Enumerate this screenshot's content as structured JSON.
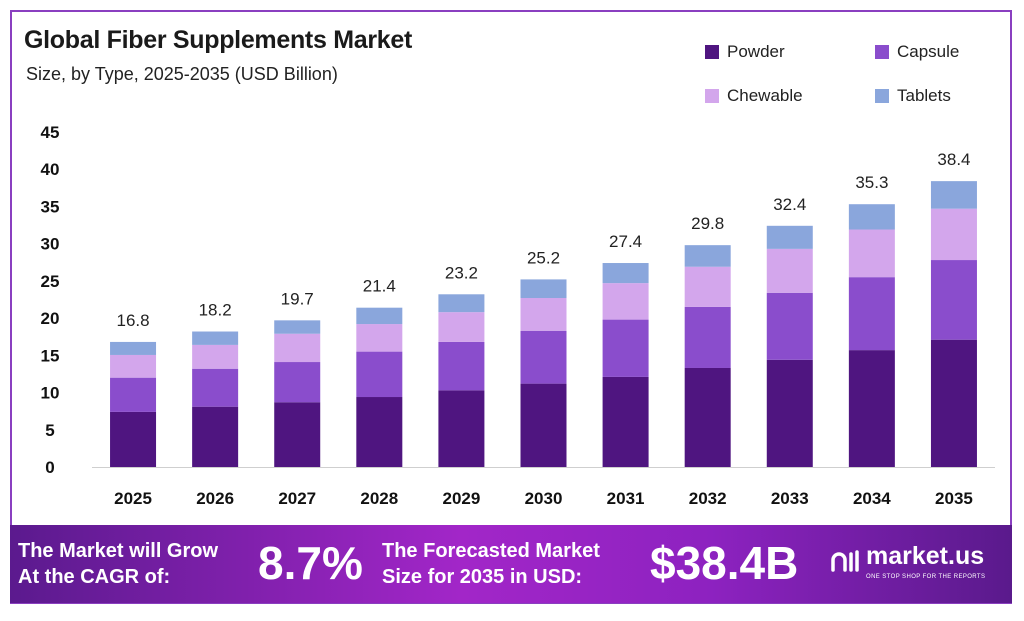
{
  "chart_data": {
    "type": "bar",
    "stacked": true,
    "title": "Global Fiber Supplements Market",
    "subtitle": "Size, by Type, 2025-2035 (USD Billion)",
    "categories": [
      "2025",
      "2026",
      "2027",
      "2028",
      "2029",
      "2030",
      "2031",
      "2032",
      "2033",
      "2034",
      "2035"
    ],
    "series": [
      {
        "name": "Powder",
        "color": "#4f1580",
        "values": [
          7.4,
          8.1,
          8.7,
          9.4,
          10.3,
          11.2,
          12.1,
          13.3,
          14.4,
          15.7,
          17.1
        ]
      },
      {
        "name": "Capsule",
        "color": "#8a4dcc",
        "values": [
          4.6,
          5.1,
          5.4,
          6.1,
          6.5,
          7.1,
          7.7,
          8.2,
          9.0,
          9.8,
          10.7
        ]
      },
      {
        "name": "Chewable",
        "color": "#d3a6ec",
        "values": [
          3.05,
          3.2,
          3.8,
          3.7,
          4.0,
          4.4,
          4.9,
          5.4,
          5.9,
          6.4,
          6.9
        ]
      },
      {
        "name": "Tablets",
        "color": "#8aa6dc",
        "values": [
          1.75,
          1.8,
          1.8,
          2.2,
          2.4,
          2.5,
          2.7,
          2.9,
          3.1,
          3.4,
          3.7
        ]
      }
    ],
    "totals": [
      "16.8",
      "18.2",
      "19.7",
      "21.4",
      "23.2",
      "25.2",
      "27.4",
      "29.8",
      "32.4",
      "35.3",
      "38.4"
    ],
    "yticks": [
      "0",
      "5",
      "10",
      "15",
      "20",
      "25",
      "30",
      "35",
      "40",
      "45"
    ],
    "ylim": [
      0,
      45
    ],
    "grid": false,
    "legend_position": "top-right"
  },
  "banner": {
    "cagr_label_1": "The Market will Grow",
    "cagr_label_2": "At the CAGR of:",
    "cagr_value": "8.7%",
    "forecast_label_1": "The Forecasted Market",
    "forecast_label_2": "Size for 2035 in USD:",
    "forecast_value": "$38.4B",
    "logo_text": "market.us",
    "logo_tagline": "ONE STOP SHOP FOR THE REPORTS"
  }
}
